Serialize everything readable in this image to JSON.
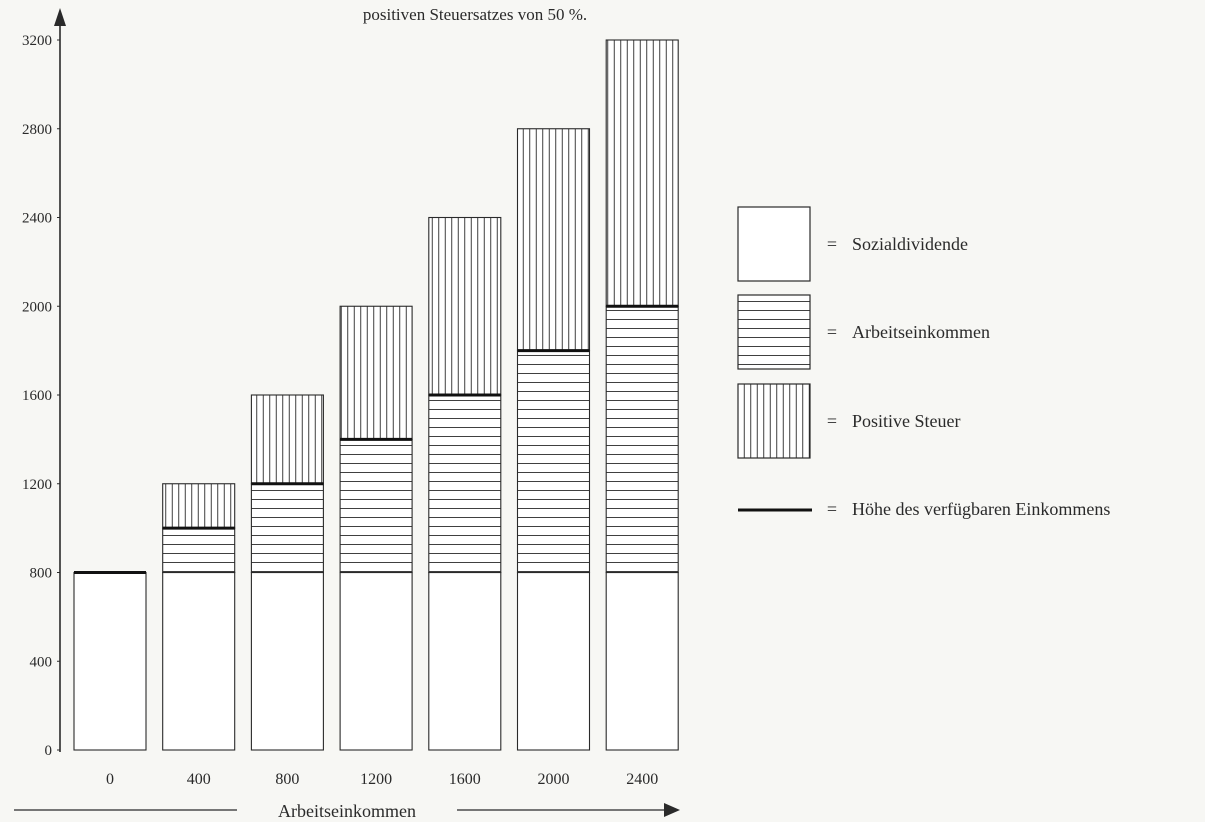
{
  "chart_data": {
    "type": "bar",
    "stacked": true,
    "title": "positiven Steuersatzes von 50 %.",
    "xlabel": "Arbeitseinkommen",
    "ylabel": "",
    "ylim": [
      0,
      3200
    ],
    "yticks": [
      0,
      400,
      800,
      1200,
      1600,
      2000,
      2400,
      2800,
      3200
    ],
    "ytick_labels": [
      "0",
      "400",
      "800",
      "1200",
      "1600",
      "2000",
      "2400",
      "2800",
      "3200"
    ],
    "categories": [
      "0",
      "400",
      "800",
      "1200",
      "1600",
      "2000",
      "2400"
    ],
    "series": [
      {
        "name": "Sozialdividende",
        "pattern": "none",
        "values": [
          800,
          800,
          800,
          800,
          800,
          800,
          800
        ]
      },
      {
        "name": "Arbeitseinkommen",
        "pattern": "horizontal",
        "values": [
          0,
          200,
          400,
          600,
          800,
          1000,
          1200
        ]
      },
      {
        "name": "Positive Steuer",
        "pattern": "vertical",
        "values": [
          0,
          200,
          400,
          600,
          800,
          1000,
          1200
        ]
      }
    ],
    "disposable_income": {
      "name": "Höhe des verfügbaren Einkommens",
      "values": [
        800,
        1000,
        1200,
        1400,
        1600,
        1800,
        2000
      ]
    },
    "grid": false,
    "legend_position": "right"
  },
  "legend": {
    "equals": "=",
    "items": [
      {
        "label": "Sozialdividende",
        "pattern": "none"
      },
      {
        "label": "Arbeitseinkommen",
        "pattern": "horizontal"
      },
      {
        "label": "Positive Steuer",
        "pattern": "vertical"
      },
      {
        "label": "Höhe des verfügbaren Einkommens",
        "pattern": "line"
      }
    ]
  },
  "colors": {
    "ink": "#2a2a2a",
    "paper": "#f7f7f4",
    "bar_fill": "#ffffff"
  }
}
